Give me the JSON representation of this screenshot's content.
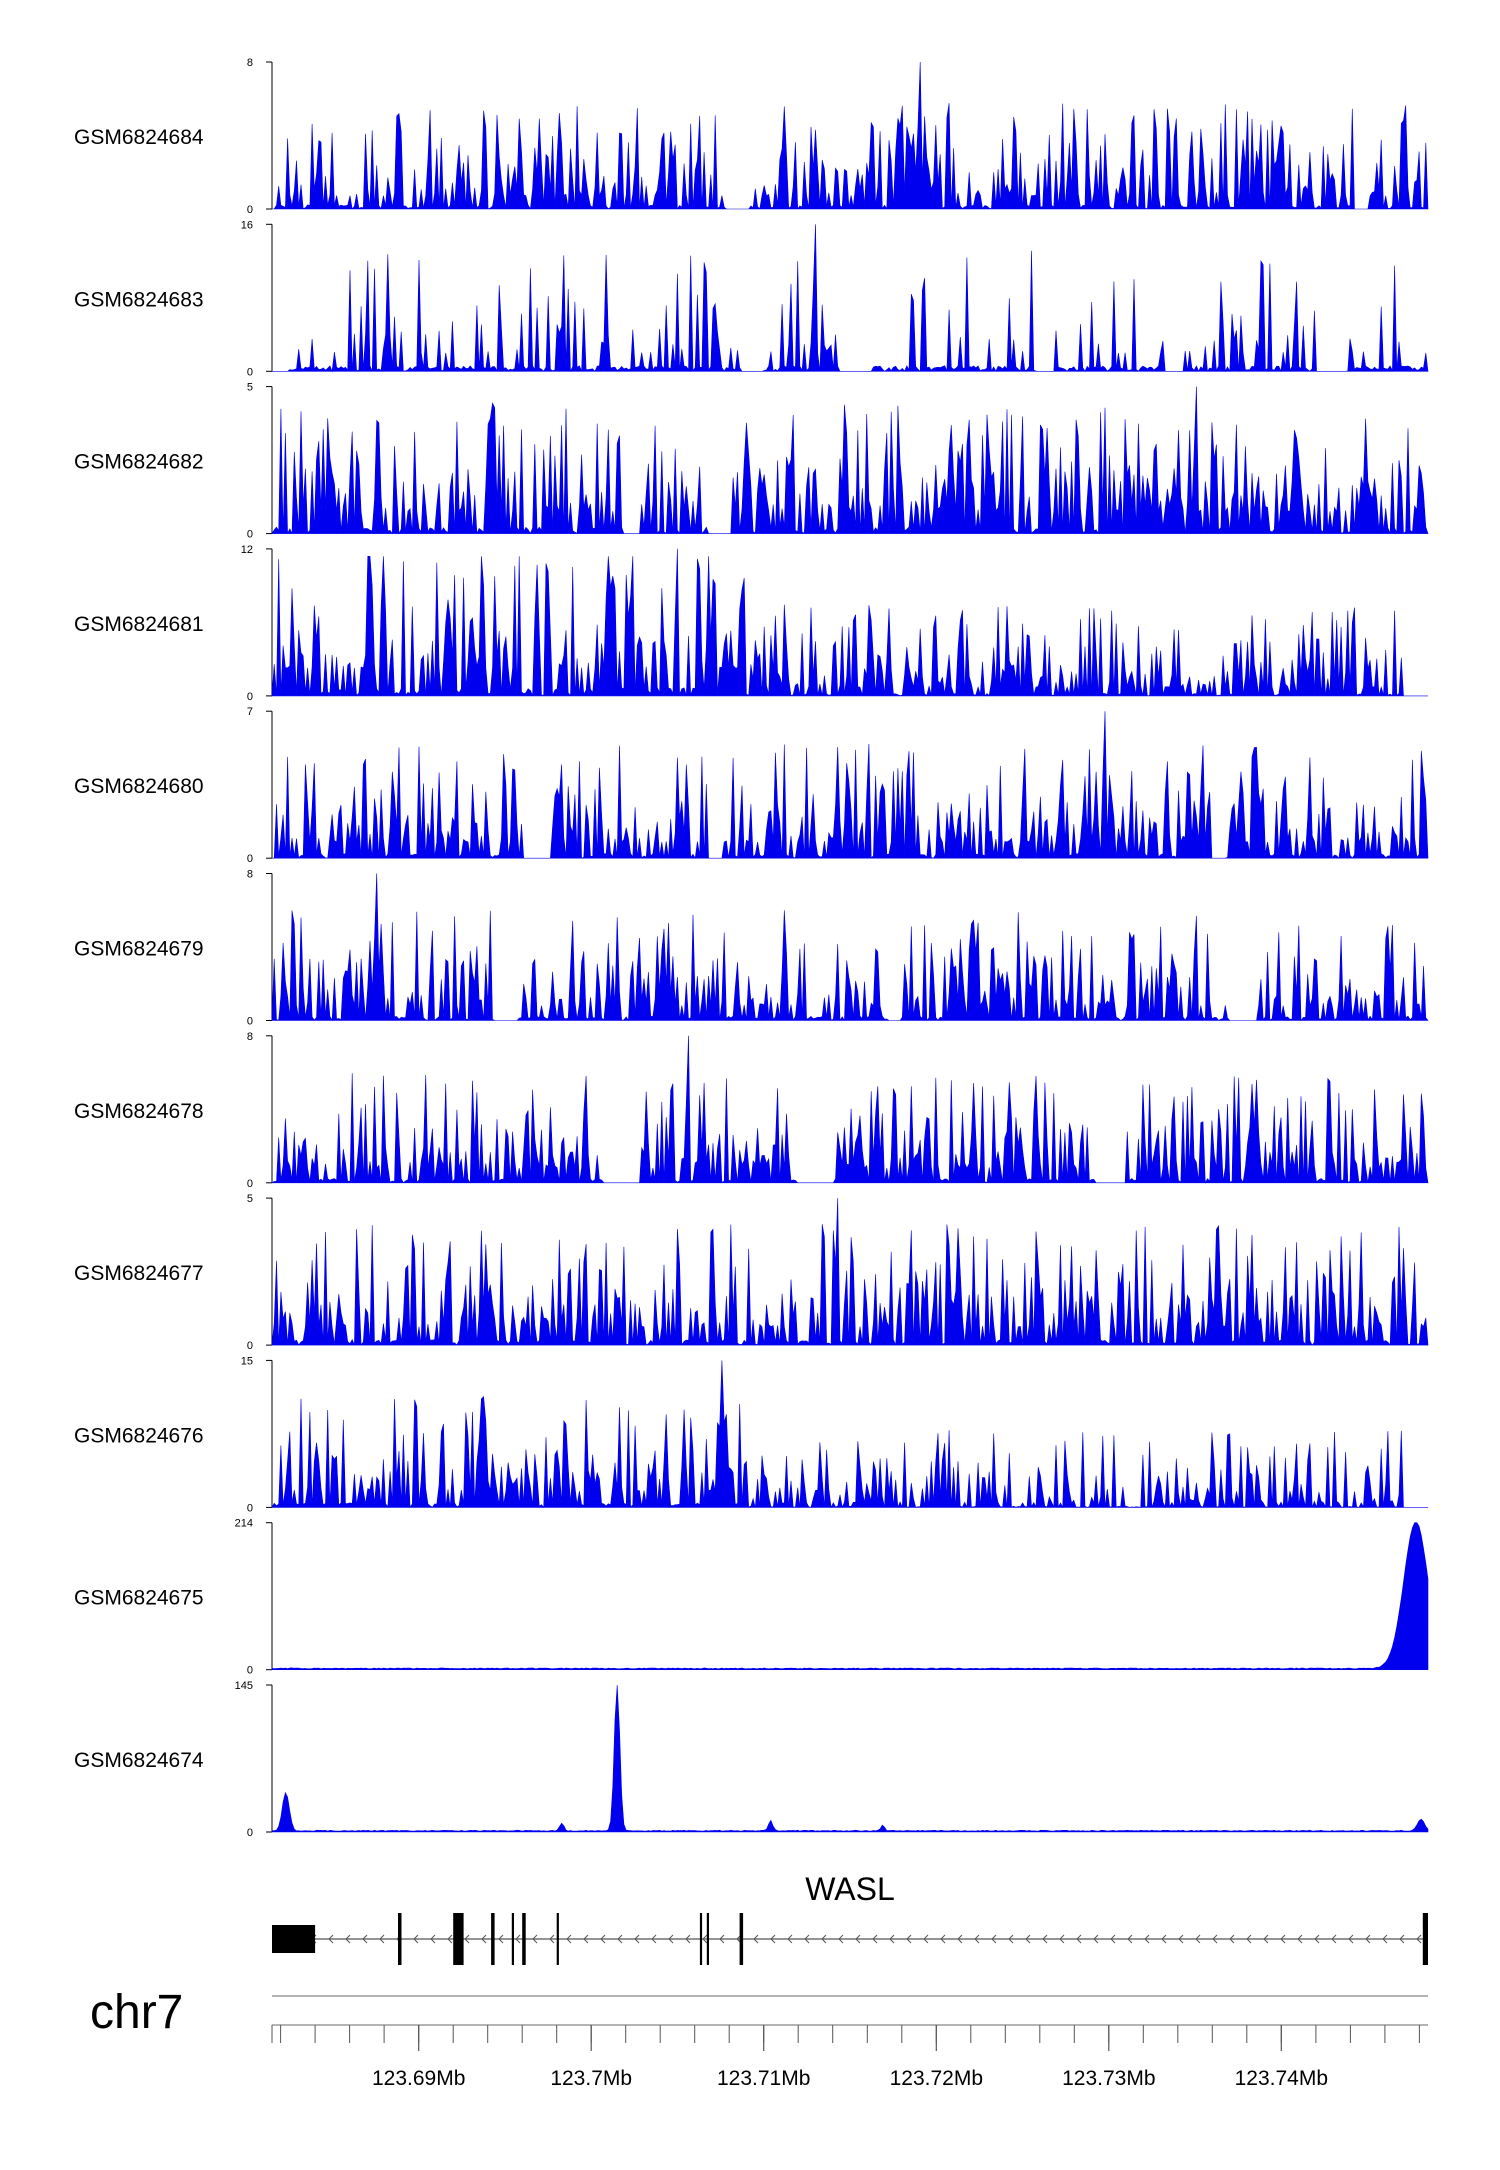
{
  "chart_data": {
    "type": "area",
    "chromosome": "chr7",
    "region_mb": [
      123.6815,
      123.7485
    ],
    "x_ticks_labeled": [
      123.69,
      123.7,
      123.71,
      123.72,
      123.73,
      123.74
    ],
    "x_tick_labels": [
      "123.69Mb",
      "123.7Mb",
      "123.71Mb",
      "123.72Mb",
      "123.73Mb",
      "123.74Mb"
    ],
    "minor_tick_step_mb": 0.002,
    "fill_color": "#0000ee",
    "tracks": [
      {
        "name": "GSM6824684",
        "ymax": 8,
        "ymin": 0,
        "profile": "spiky",
        "seed": 11,
        "base": 0.18,
        "gaps": 2,
        "peak_frac": 0.56
      },
      {
        "name": "GSM6824683",
        "ymax": 16,
        "ymin": 0,
        "profile": "sparse",
        "seed": 23,
        "base": 0.25,
        "gaps": 6,
        "peak_frac": 0.47
      },
      {
        "name": "GSM6824682",
        "ymax": 5,
        "ymin": 0,
        "profile": "spiky",
        "seed": 37,
        "base": 0.3,
        "gaps": 2,
        "peak_frac": 0.8
      },
      {
        "name": "GSM6824681",
        "ymax": 12,
        "ymin": 0,
        "profile": "step",
        "seed": 41,
        "base": 0.35,
        "gaps": 0,
        "peak_frac": 0.35,
        "step_frac": 0.41,
        "high_level": 0.38,
        "low_level": 0.12
      },
      {
        "name": "GSM6824680",
        "ymax": 7,
        "ymin": 0,
        "profile": "spiky",
        "seed": 53,
        "base": 0.22,
        "gaps": 3,
        "peak_frac": 0.72
      },
      {
        "name": "GSM6824679",
        "ymax": 8,
        "ymin": 0,
        "profile": "spiky",
        "seed": 67,
        "base": 0.2,
        "gaps": 3,
        "peak_frac": 0.09
      },
      {
        "name": "GSM6824678",
        "ymax": 8,
        "ymin": 0,
        "profile": "spiky",
        "seed": 71,
        "base": 0.2,
        "gaps": 3,
        "peak_frac": 0.36
      },
      {
        "name": "GSM6824677",
        "ymax": 5,
        "ymin": 0,
        "profile": "spiky",
        "seed": 83,
        "base": 0.25,
        "gaps": 0,
        "peak_frac": 0.49
      },
      {
        "name": "GSM6824676",
        "ymax": 15,
        "ymin": 0,
        "profile": "step",
        "seed": 97,
        "base": 0.15,
        "gaps": 0,
        "peak_frac": 0.39,
        "step_frac": 0.41,
        "high_level": 0.22,
        "low_level": 0.06
      },
      {
        "name": "GSM6824675",
        "ymax": 214,
        "ymin": 0,
        "profile": "endpeak",
        "seed": 101,
        "peaks": [
          {
            "x": 123.7478,
            "h": 1.0,
            "w": 0.0007
          }
        ]
      },
      {
        "name": "GSM6824674",
        "ymax": 145,
        "ymin": 0,
        "profile": "fewpeaks",
        "seed": 113,
        "peaks": [
          {
            "x": 123.6823,
            "h": 0.26,
            "w": 0.0002
          },
          {
            "x": 123.7015,
            "h": 1.0,
            "w": 0.00016
          },
          {
            "x": 123.6983,
            "h": 0.05,
            "w": 0.00012
          },
          {
            "x": 123.7104,
            "h": 0.07,
            "w": 0.00012
          },
          {
            "x": 123.7169,
            "h": 0.04,
            "w": 0.0001
          },
          {
            "x": 123.7481,
            "h": 0.08,
            "w": 0.0002
          }
        ]
      }
    ],
    "gene": {
      "name": "WASL",
      "strand": "-",
      "start_mb": 123.6815,
      "end_mb": 123.7485,
      "exons_mb": [
        [
          123.6815,
          123.684
        ],
        [
          123.6888,
          123.689
        ],
        [
          123.692,
          123.6926
        ],
        [
          123.6942,
          123.6944
        ],
        [
          123.6954,
          123.6955
        ],
        [
          123.696,
          123.6962
        ],
        [
          123.698,
          123.6981
        ],
        [
          123.7063,
          123.7064
        ],
        [
          123.7067,
          123.7068
        ],
        [
          123.7086,
          123.7088
        ],
        [
          123.7482,
          123.7485
        ]
      ]
    }
  }
}
